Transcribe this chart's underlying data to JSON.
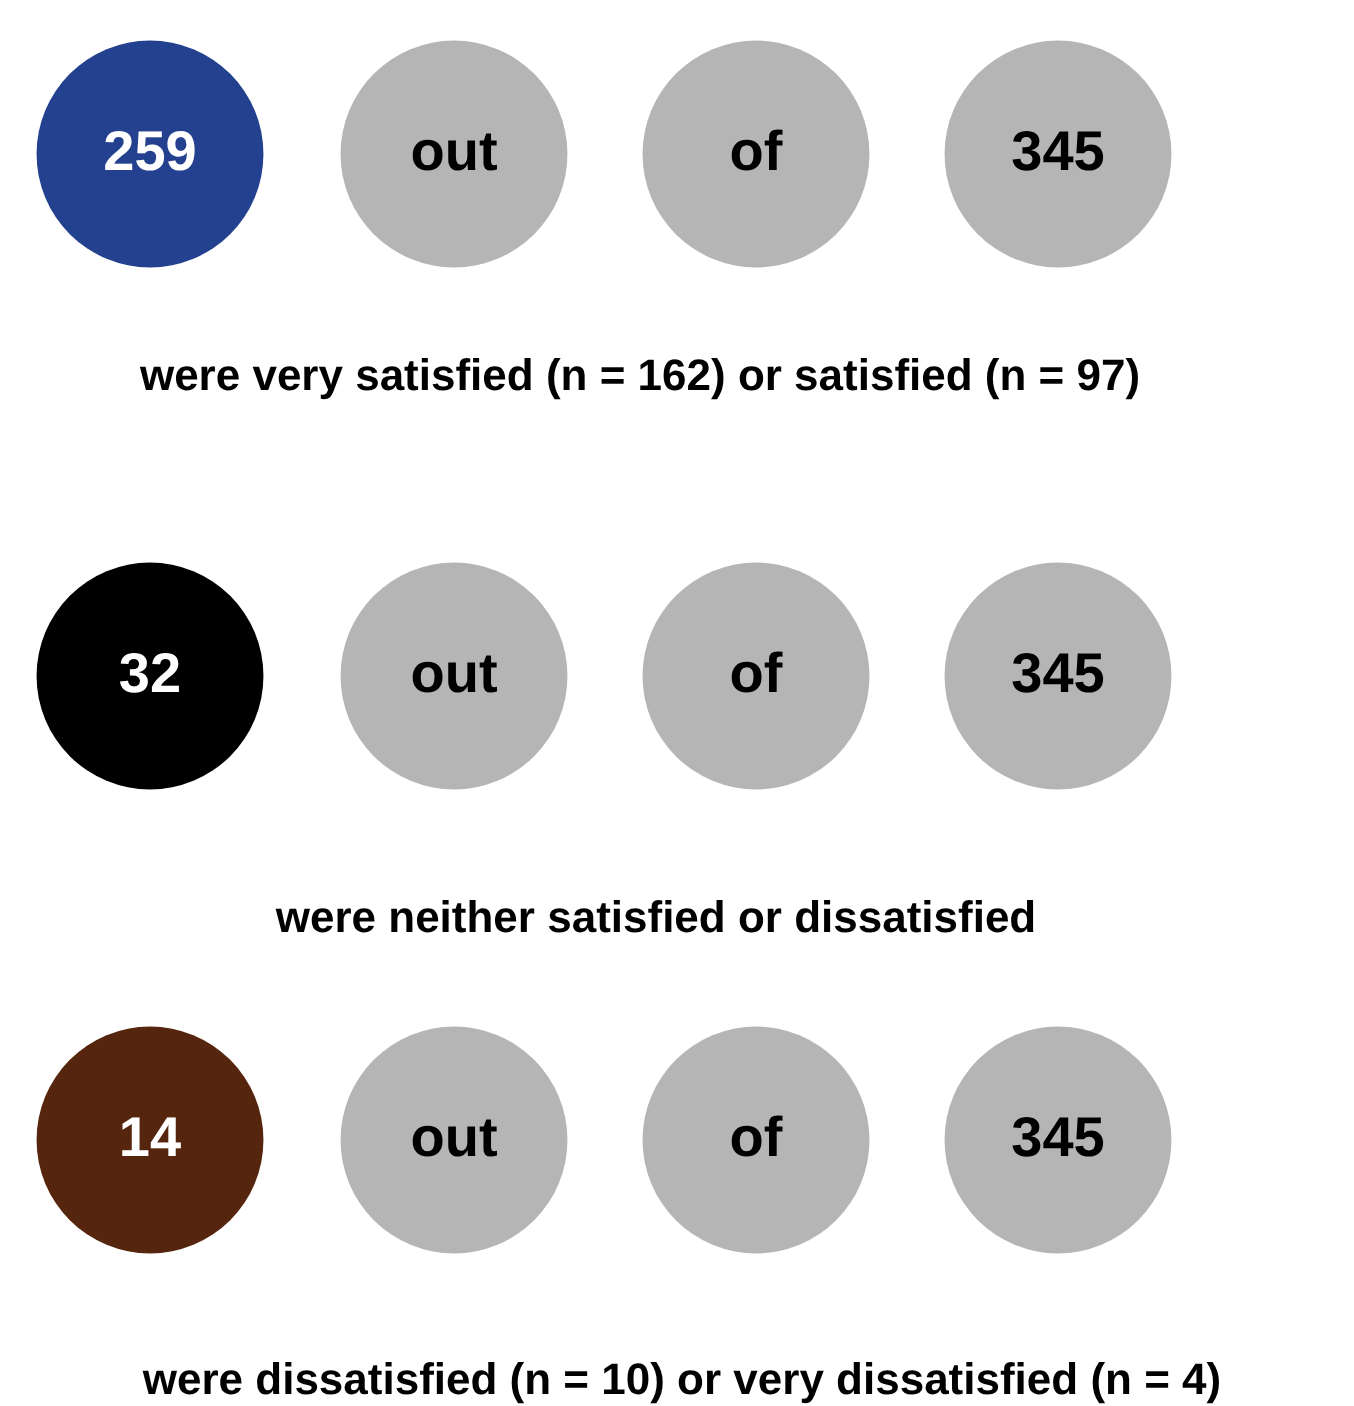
{
  "chart_data": {
    "type": "other",
    "data_labels": true,
    "values": [
      259,
      32,
      14
    ],
    "colors": [
      "#24418f",
      "#000000",
      "#55250e"
    ],
    "color": "#b5b5b5",
    "totals": [
      "345",
      "345",
      "345"
    ],
    "annotations": [
      "out",
      "of",
      "were very satisfied (n = 162) or satisfied (n = 97)",
      "were neither satisfied or dissatisfied",
      "were dissatisfied (n = 10) or very dissatisfied (n = 4)"
    ]
  }
}
